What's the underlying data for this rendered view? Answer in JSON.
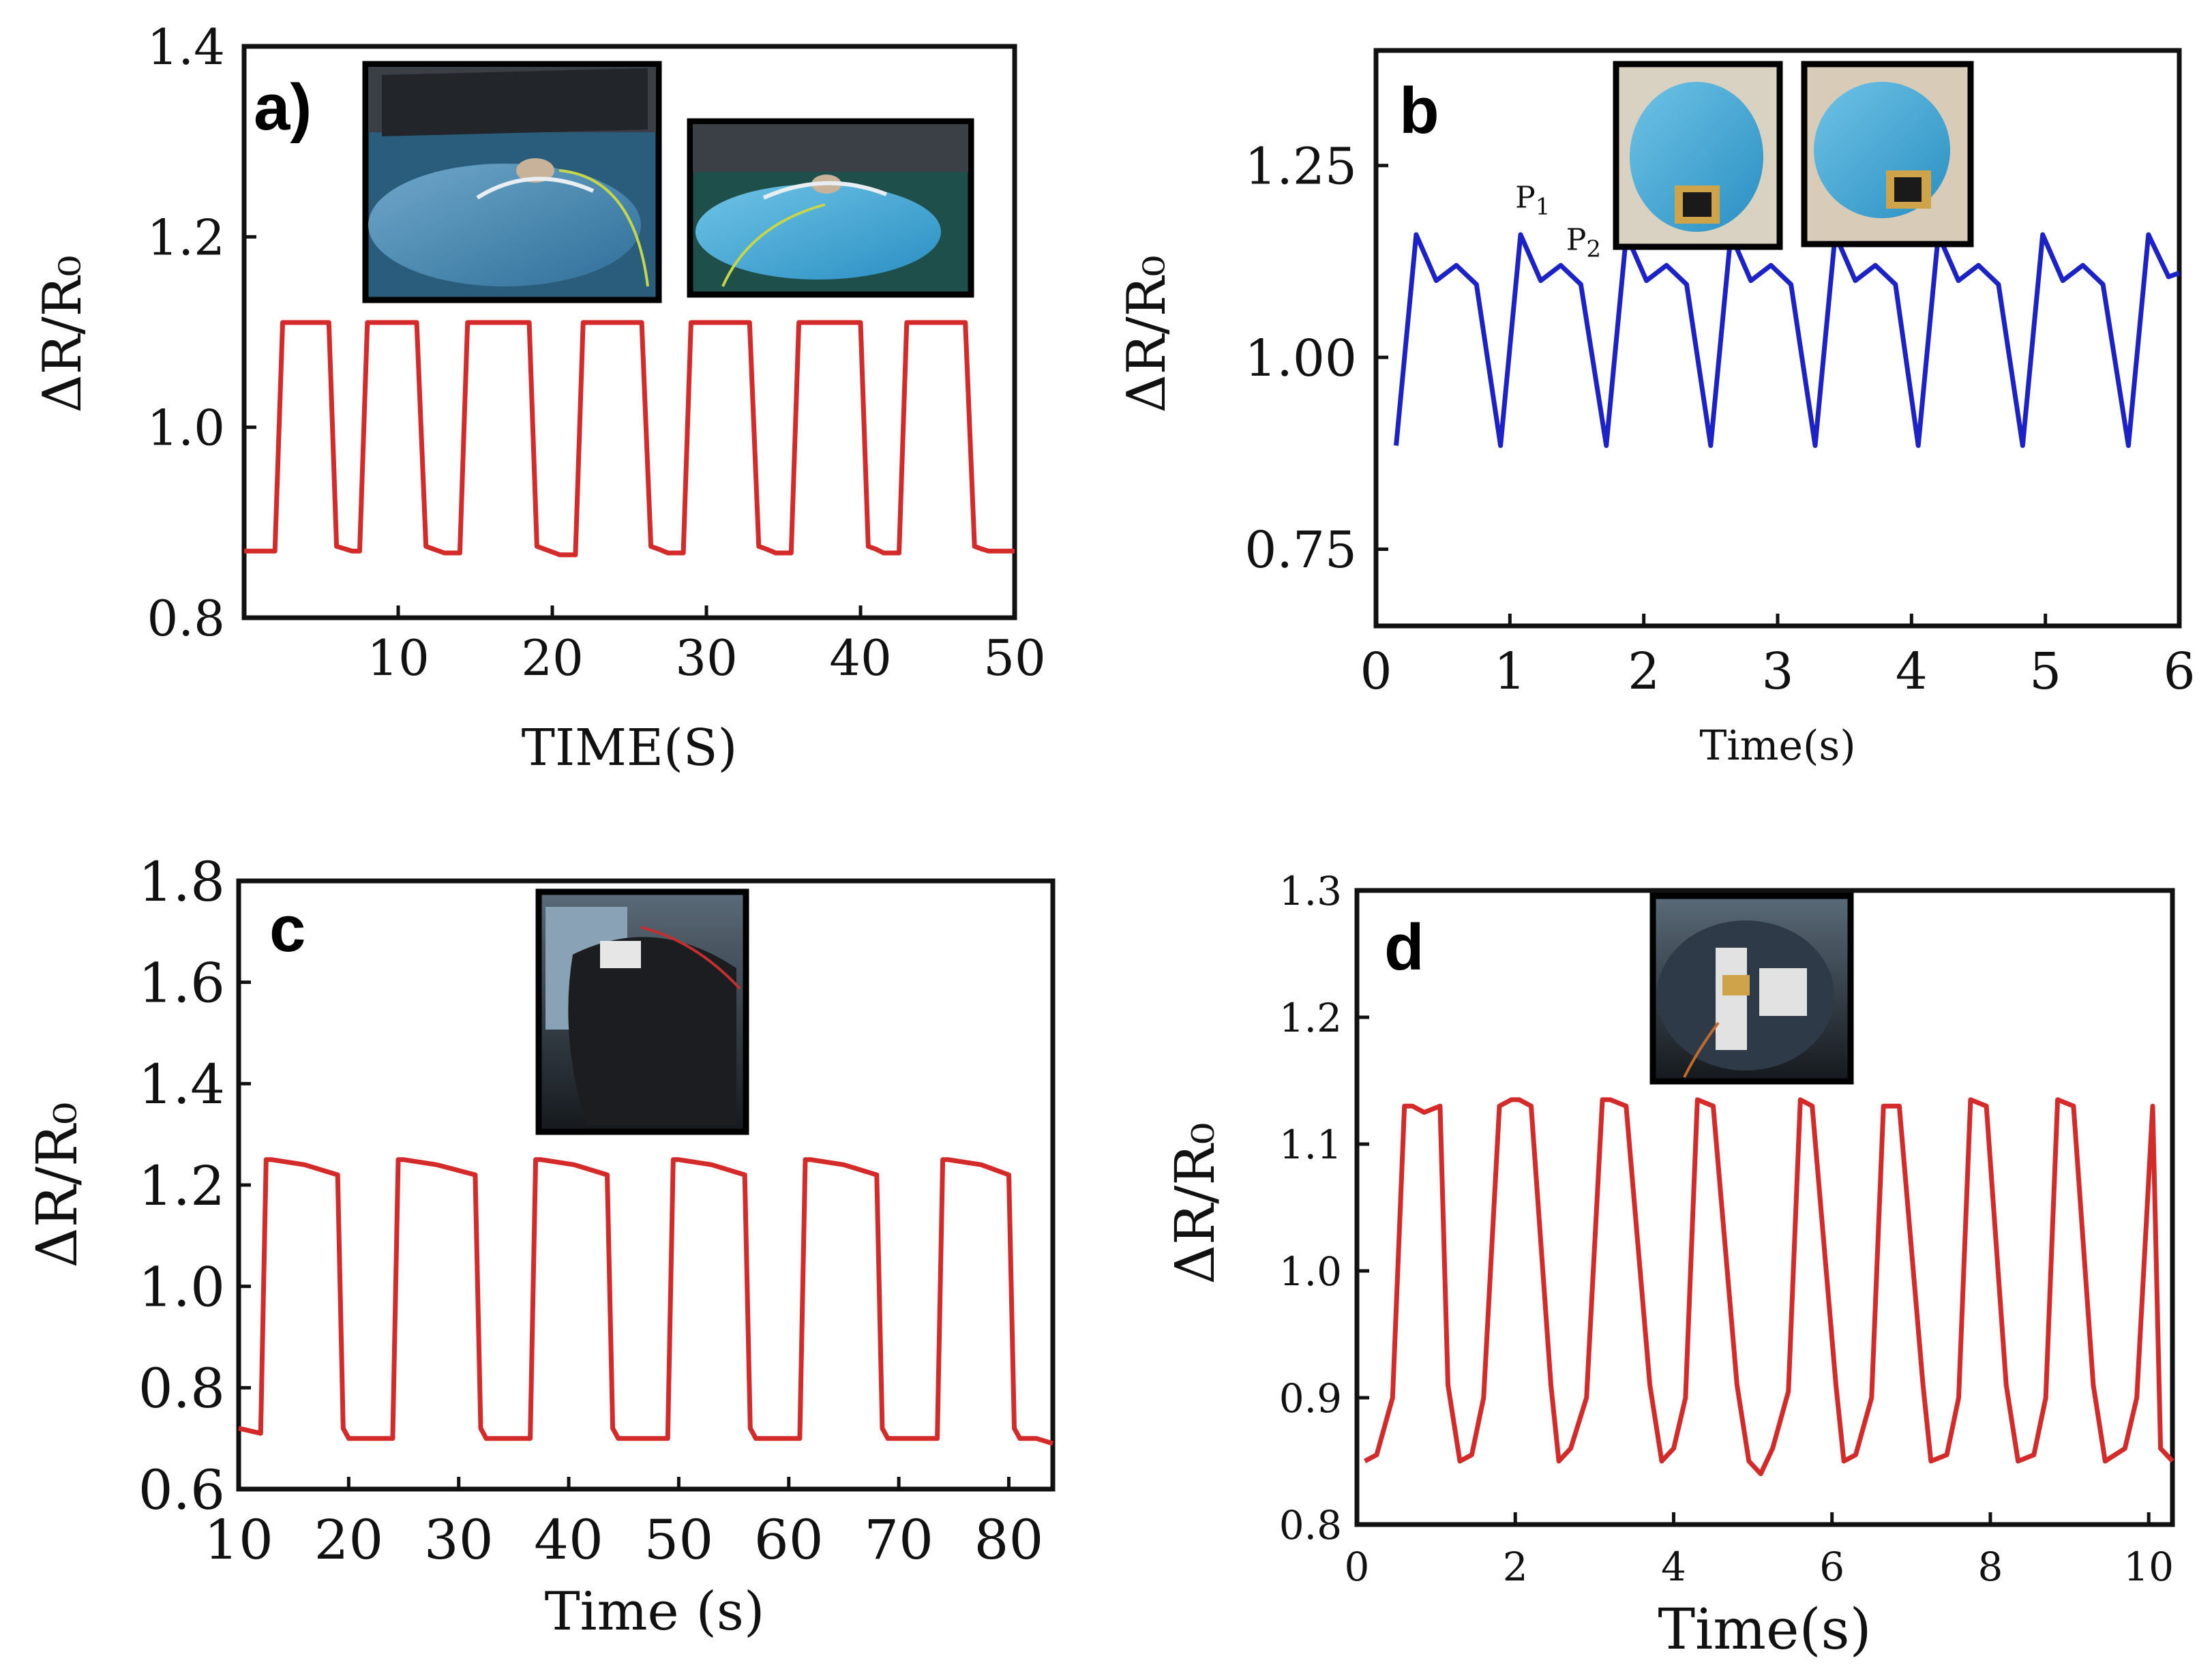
{
  "chart_data": [
    {
      "type": "line",
      "panel_label": "a)",
      "xlabel": "TIME(S)",
      "ylabel": "ΔR/R₀",
      "xlim": [
        0,
        50
      ],
      "ylim": [
        0.8,
        1.4
      ],
      "xticks": [
        "10",
        "20",
        "30",
        "40",
        "50"
      ],
      "yticks": [
        "0.8",
        "1.0",
        "1.2",
        "1.4"
      ],
      "line_color": "#d42a2a",
      "insets": [
        "photo of sensor on gloved hand near keyboard",
        "photo of sensor on gloved hand, side view"
      ],
      "series": [
        {
          "name": "response",
          "x": [
            0,
            1.5,
            2,
            2.5,
            5,
            5.5,
            6,
            7,
            7.5,
            8,
            8.5,
            11.2,
            11.8,
            12.3,
            13,
            14,
            14.5,
            15,
            15.5,
            18.5,
            19,
            19.5,
            20.5,
            21.5,
            22,
            22.5,
            23,
            25.8,
            26.4,
            26.9,
            27.5,
            28.5,
            29,
            29.5,
            30,
            32.8,
            33.4,
            33.9,
            34.5,
            35.5,
            36,
            36.5,
            37,
            40,
            40.5,
            41,
            41.5,
            42.5,
            43,
            43.5,
            44,
            46.8,
            47.4,
            47.9,
            48.3,
            50
          ],
          "y": [
            0.87,
            0.87,
            0.87,
            1.11,
            1.11,
            1.11,
            0.875,
            0.87,
            0.87,
            1.11,
            1.11,
            1.11,
            0.875,
            0.872,
            0.868,
            0.868,
            1.11,
            1.11,
            1.11,
            1.11,
            0.875,
            0.872,
            0.866,
            0.866,
            1.11,
            1.11,
            1.11,
            1.11,
            0.875,
            0.872,
            0.868,
            0.868,
            1.11,
            1.11,
            1.11,
            1.11,
            0.875,
            0.872,
            0.868,
            0.868,
            1.11,
            1.11,
            1.11,
            1.11,
            0.875,
            0.872,
            0.868,
            0.868,
            1.11,
            1.11,
            1.11,
            1.11,
            0.875,
            0.872,
            0.87,
            0.87
          ]
        }
      ]
    },
    {
      "type": "line",
      "panel_label": "b",
      "xlabel": "Time(s)",
      "ylabel": "ΔR/R₀",
      "xlim": [
        0,
        6
      ],
      "ylim": [
        0.65,
        1.4
      ],
      "xticks": [
        "0",
        "1",
        "2",
        "3",
        "4",
        "5",
        "6"
      ],
      "yticks": [
        "0.75",
        "1.00",
        "1.25"
      ],
      "line_color": "#1d22c8",
      "annotations": [
        {
          "text": "P",
          "sub": "1",
          "x": 1.04,
          "y": 1.195
        },
        {
          "text": "P",
          "sub": "2",
          "x": 1.42,
          "y": 1.14
        }
      ],
      "insets": [
        "photo of sensor on wrist, fist clenched",
        "photo of sensor on wrist, fist bent"
      ],
      "series": [
        {
          "name": "response",
          "x": [
            0.15,
            0.3,
            0.45,
            0.6,
            0.75,
            0.93,
            1.08,
            1.23,
            1.38,
            1.53,
            1.72,
            1.87,
            2.02,
            2.17,
            2.32,
            2.5,
            2.65,
            2.8,
            2.95,
            3.1,
            3.28,
            3.43,
            3.58,
            3.73,
            3.88,
            4.05,
            4.2,
            4.35,
            4.5,
            4.65,
            4.83,
            4.98,
            5.13,
            5.28,
            5.43,
            5.62,
            5.77,
            5.92,
            6.0
          ],
          "y": [
            0.885,
            1.16,
            1.1,
            1.12,
            1.095,
            0.885,
            1.16,
            1.1,
            1.12,
            1.095,
            0.885,
            1.16,
            1.1,
            1.12,
            1.095,
            0.885,
            1.16,
            1.1,
            1.12,
            1.095,
            0.885,
            1.16,
            1.1,
            1.12,
            1.095,
            0.885,
            1.16,
            1.1,
            1.12,
            1.095,
            0.885,
            1.16,
            1.1,
            1.12,
            1.095,
            0.885,
            1.16,
            1.105,
            1.11
          ]
        }
      ]
    },
    {
      "type": "line",
      "panel_label": "c",
      "xlabel": "Time  (s)",
      "ylabel": "ΔR/R₀",
      "xlim": [
        10,
        84
      ],
      "ylim": [
        0.6,
        1.8
      ],
      "xticks": [
        "10",
        "20",
        "30",
        "40",
        "50",
        "60",
        "70",
        "80"
      ],
      "yticks": [
        "0.6",
        "0.8",
        "1.0",
        "1.2",
        "1.4",
        "1.6",
        "1.8"
      ],
      "line_color": "#d42a2a",
      "insets": [
        "photo of sensor attached on knee"
      ],
      "series": [
        {
          "name": "response",
          "x": [
            10,
            12,
            12.5,
            13,
            16,
            19,
            19.5,
            20,
            21,
            24,
            24.5,
            25,
            28,
            31.5,
            32,
            32.5,
            33.5,
            36.5,
            37,
            37.5,
            40.5,
            43.5,
            44,
            44.5,
            45.5,
            49,
            49.5,
            50,
            53,
            56,
            56.5,
            57,
            58,
            61,
            61.5,
            62,
            65,
            68,
            68.5,
            69,
            70,
            73.5,
            74,
            74.5,
            77.5,
            80,
            80.5,
            81,
            82.5,
            84
          ],
          "y": [
            0.72,
            0.71,
            1.25,
            1.25,
            1.24,
            1.22,
            0.72,
            0.7,
            0.7,
            0.7,
            1.25,
            1.25,
            1.24,
            1.22,
            0.72,
            0.7,
            0.7,
            0.7,
            1.25,
            1.25,
            1.24,
            1.22,
            0.72,
            0.7,
            0.7,
            0.7,
            1.25,
            1.25,
            1.24,
            1.22,
            0.72,
            0.7,
            0.7,
            0.7,
            1.25,
            1.25,
            1.24,
            1.22,
            0.72,
            0.7,
            0.7,
            0.7,
            1.25,
            1.25,
            1.24,
            1.22,
            0.72,
            0.7,
            0.7,
            0.69
          ]
        }
      ]
    },
    {
      "type": "line",
      "panel_label": "d",
      "xlabel": "Time(s)",
      "ylabel": "ΔR/R₀",
      "xlim": [
        0,
        10.3
      ],
      "ylim": [
        0.8,
        1.3
      ],
      "xticks": [
        "0",
        "2",
        "4",
        "6",
        "8",
        "10"
      ],
      "yticks": [
        "0.8",
        "0.9",
        "1.0",
        "1.1",
        "1.2",
        "1.3"
      ],
      "line_color": "#d42a2a",
      "insets": [
        "photo of sensor attached on elbow"
      ],
      "series": [
        {
          "name": "response",
          "x": [
            0.1,
            0.25,
            0.45,
            0.6,
            0.7,
            0.85,
            1.05,
            1.15,
            1.3,
            1.45,
            1.6,
            1.8,
            1.95,
            2.05,
            2.2,
            2.45,
            2.55,
            2.7,
            2.9,
            3.1,
            3.2,
            3.4,
            3.7,
            3.85,
            4.0,
            4.15,
            4.3,
            4.5,
            4.8,
            4.95,
            5.1,
            5.25,
            5.45,
            5.6,
            5.75,
            6.05,
            6.15,
            6.3,
            6.5,
            6.65,
            6.85,
            7.15,
            7.25,
            7.45,
            7.6,
            7.75,
            7.95,
            8.2,
            8.35,
            8.55,
            8.7,
            8.85,
            9.05,
            9.3,
            9.45,
            9.7,
            9.85,
            10.05,
            10.15,
            10.3
          ],
          "y": [
            0.85,
            0.855,
            0.9,
            1.13,
            1.13,
            1.125,
            1.13,
            0.91,
            0.85,
            0.855,
            0.9,
            1.13,
            1.135,
            1.135,
            1.13,
            0.91,
            0.85,
            0.86,
            0.9,
            1.135,
            1.135,
            1.13,
            0.91,
            0.85,
            0.86,
            0.9,
            1.135,
            1.13,
            0.91,
            0.85,
            0.84,
            0.86,
            0.905,
            1.135,
            1.13,
            0.91,
            0.85,
            0.855,
            0.9,
            1.13,
            1.13,
            0.91,
            0.85,
            0.855,
            0.9,
            1.135,
            1.13,
            0.91,
            0.85,
            0.855,
            0.9,
            1.135,
            1.13,
            0.91,
            0.85,
            0.86,
            0.9,
            1.13,
            0.86,
            0.85
          ]
        }
      ]
    }
  ]
}
